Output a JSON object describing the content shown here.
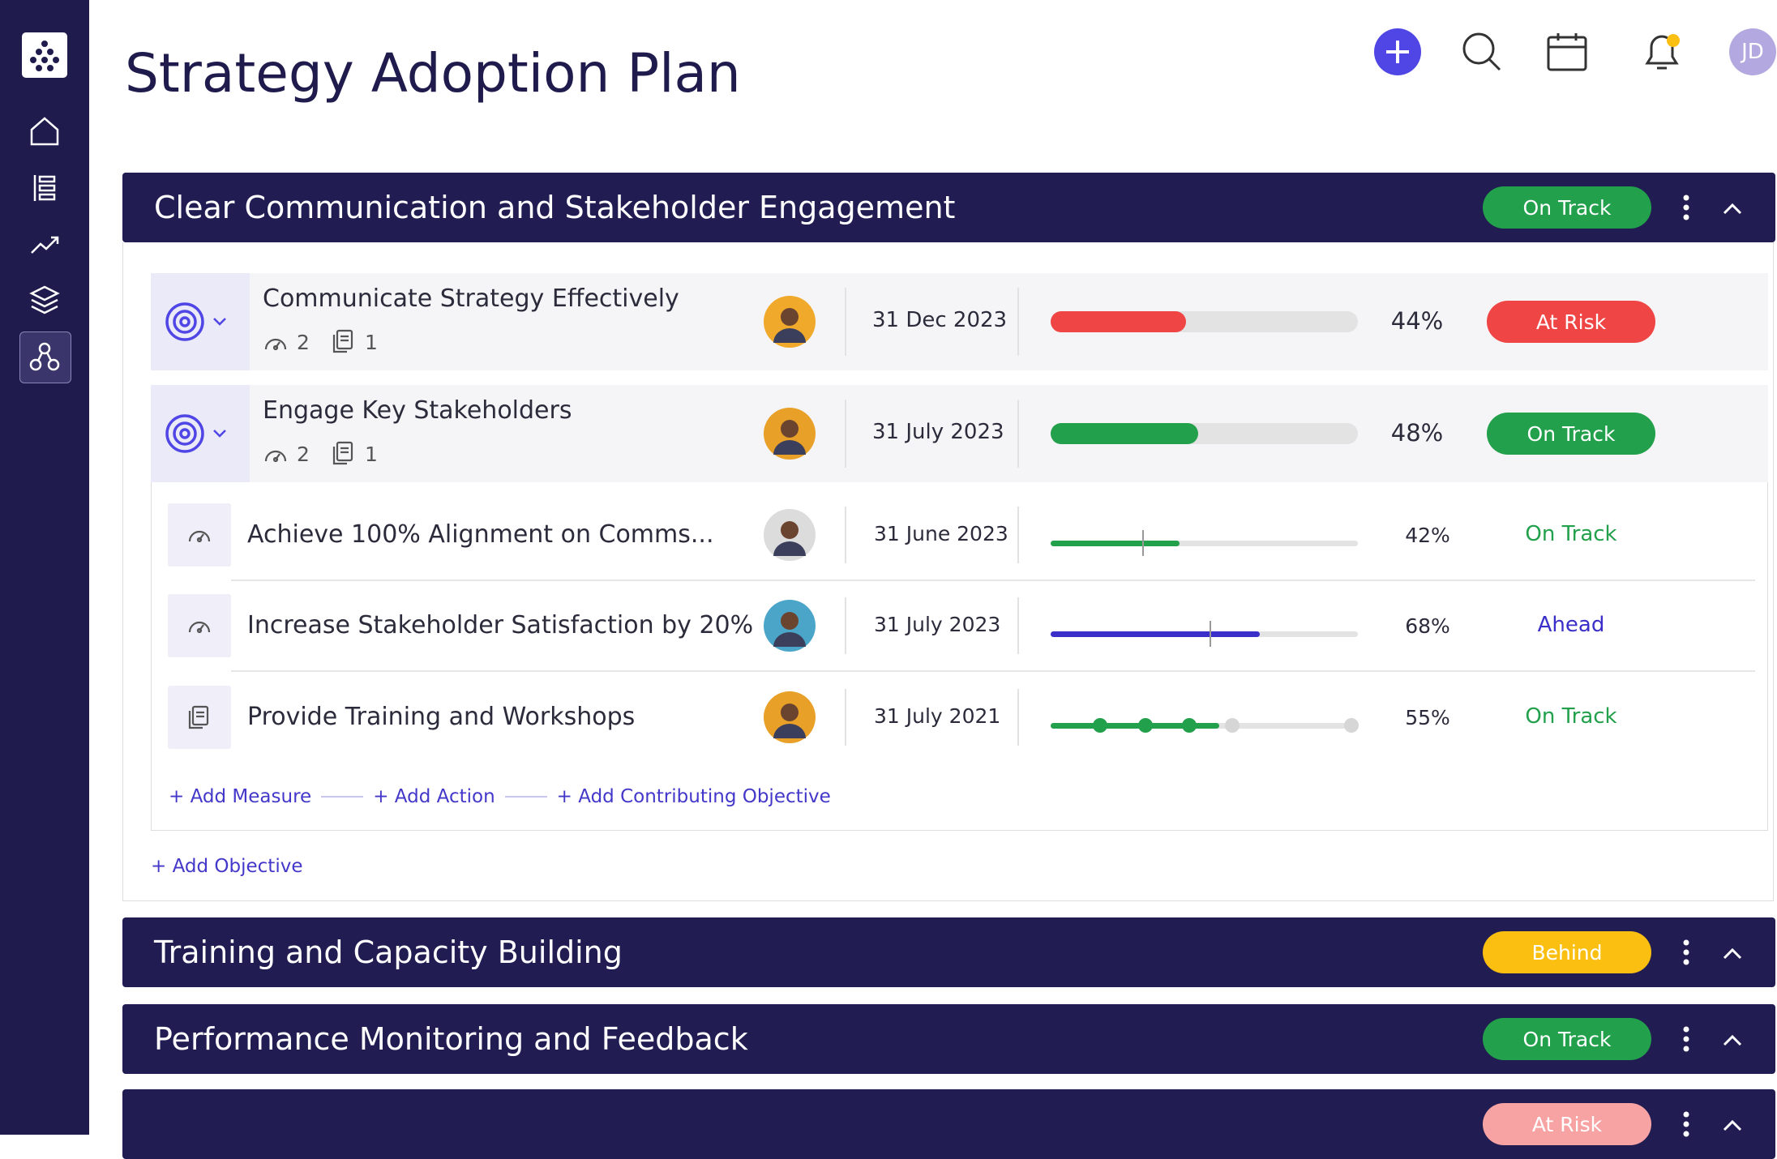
{
  "header": {
    "title": "Strategy Adoption Plan",
    "avatar": "JD"
  },
  "sections": [
    {
      "title": "Clear Communication and Stakeholder Engagement",
      "status": "On Track",
      "status_color": "#22a04b",
      "objectives": [
        {
          "title": "Communicate Strategy Effectively",
          "measures": 2,
          "actions": 1,
          "date": "31 Dec 2023",
          "progress": 44,
          "progress_label": "44%",
          "progress_color": "#f04545",
          "status": "At Risk",
          "status_color": "#f04545"
        },
        {
          "title": "Engage Key Stakeholders",
          "measures": 2,
          "actions": 1,
          "date": "31 July 2023",
          "progress": 48,
          "progress_label": "48%",
          "progress_color": "#22a04b",
          "status": "On Track",
          "status_color": "#22a04b",
          "children": [
            {
              "title": "Achieve 100% Alignment on Comms...",
              "date": "31 June 2023",
              "progress": 42,
              "progress_label": "42%",
              "target": 30,
              "color": "#22a04b",
              "status": "On Track"
            },
            {
              "title": "Increase Stakeholder Satisfaction by 20%",
              "date": "31 July 2023",
              "progress": 68,
              "progress_label": "68%",
              "target": 52,
              "color": "#3b2fc9",
              "status": "Ahead"
            },
            {
              "title": "Provide Training and Workshops",
              "date": "31 July 2021",
              "progress": 55,
              "progress_label": "55%",
              "milestones": [
                16,
                31,
                45,
                59,
                98
              ],
              "color": "#22a04b",
              "status": "On Track"
            }
          ]
        }
      ],
      "links": [
        "+ Add Measure",
        "+ Add Action",
        "+ Add Contributing Objective"
      ],
      "add_objective": "+ Add Objective"
    },
    {
      "title": "Training and Capacity Building",
      "status": "Behind",
      "status_color": "#fbbf12"
    },
    {
      "title": "Performance Monitoring and Feedback",
      "status": "On Track",
      "status_color": "#22a04b"
    },
    {
      "status": "At Risk",
      "status_color": "#f7a3a3"
    }
  ]
}
